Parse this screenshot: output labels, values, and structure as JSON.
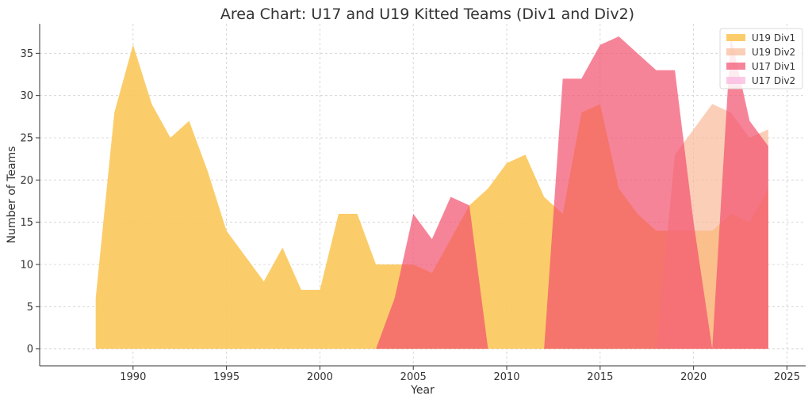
{
  "chart_data": {
    "type": "area",
    "title": "Area Chart: U17 and U19 Kitted Teams (Div1 and Div2)",
    "xlabel": "Year",
    "ylabel": "Number of Teams",
    "xlim": [
      1985,
      2026
    ],
    "ylim": [
      -2,
      38.5
    ],
    "xticks": [
      1990,
      1995,
      2000,
      2005,
      2010,
      2015,
      2020,
      2025
    ],
    "yticks": [
      0,
      5,
      10,
      15,
      20,
      25,
      30,
      35
    ],
    "grid": true,
    "legend_position": "top-right",
    "x": [
      1988,
      1989,
      1990,
      1991,
      1992,
      1993,
      1994,
      1995,
      1996,
      1997,
      1998,
      1999,
      2000,
      2001,
      2002,
      2003,
      2004,
      2005,
      2006,
      2007,
      2008,
      2009,
      2010,
      2011,
      2012,
      2013,
      2014,
      2015,
      2016,
      2017,
      2018,
      2019,
      2020,
      2021,
      2022,
      2023,
      2024
    ],
    "series": [
      {
        "name": "U19 Div1",
        "color": "#fbc85a",
        "opacity": 0.9,
        "values": [
          6,
          28,
          36,
          29,
          25,
          27,
          21,
          14,
          11,
          8,
          12,
          7,
          7,
          16,
          16,
          10,
          10,
          10,
          9,
          13,
          17,
          19,
          22,
          23,
          18,
          16,
          28,
          29,
          19,
          16,
          14,
          14,
          14,
          14,
          16,
          15,
          19
        ]
      },
      {
        "name": "U19 Div2",
        "color": "#f9b99a",
        "opacity": 0.7,
        "values": [
          0,
          0,
          0,
          0,
          0,
          0,
          0,
          0,
          0,
          0,
          0,
          0,
          0,
          0,
          0,
          0,
          0,
          0,
          0,
          0,
          0,
          0,
          0,
          0,
          0,
          0,
          0,
          0,
          0,
          0,
          0,
          23,
          26,
          29,
          28,
          25,
          26
        ]
      },
      {
        "name": "U17 Div1",
        "color": "#f2506e",
        "opacity": 0.7,
        "values": [
          0,
          0,
          0,
          0,
          0,
          0,
          0,
          0,
          0,
          0,
          0,
          0,
          0,
          0,
          0,
          0,
          6,
          16,
          13,
          18,
          17,
          0,
          0,
          0,
          0,
          32,
          32,
          36,
          37,
          35,
          33,
          33,
          15,
          0,
          37,
          27,
          24
        ]
      },
      {
        "name": "U17 Div2",
        "color": "#f9b3dd",
        "opacity": 0.7,
        "values": [
          0,
          0,
          0,
          0,
          0,
          0,
          0,
          0,
          0,
          0,
          0,
          0,
          0,
          0,
          0,
          0,
          0,
          0,
          0,
          0,
          0,
          0,
          0,
          0,
          0,
          0,
          0,
          0,
          0,
          0,
          0,
          0,
          0,
          0,
          0,
          0,
          0
        ]
      }
    ]
  }
}
